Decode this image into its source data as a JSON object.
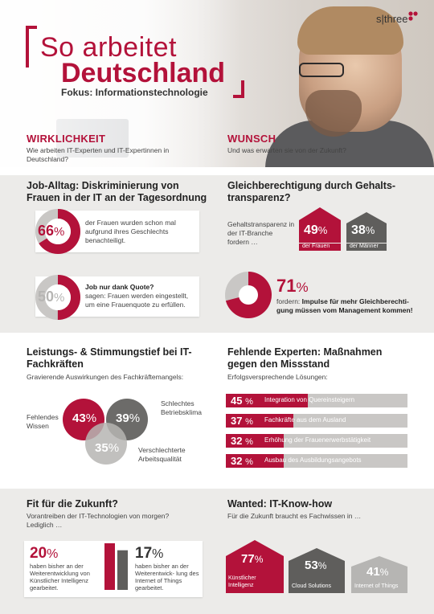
{
  "header": {
    "title_line1": "So arbeitet",
    "title_line2": "Deutschland",
    "subtitle": "Fokus: Informationstechnologie",
    "logo": "s|three"
  },
  "reality": {
    "label": "WIRKLICHKEIT",
    "question": "Wie arbeiten IT-Experten und IT-Expertinnen in Deutschland?"
  },
  "wish": {
    "label": "WUNSCH",
    "question": "Und was erwarten sie von der Zukunft?"
  },
  "job": {
    "heading": "Job-Alltag: Diskriminierung von Frauen in der IT an der Tagesordnung",
    "stat1": {
      "value": "66",
      "unit": "%",
      "text": "der Frauen wurden schon mal aufgrund ihres Geschlechts benachteiligt."
    },
    "stat2": {
      "value": "50",
      "unit": "%",
      "title": "Job nur dank Quote?",
      "text": "sagen: Frauen werden eingestellt, um eine Frauenquote zu erfüllen."
    }
  },
  "equality": {
    "heading": "Gleichberechtigung durch Gehalts- transparenz?",
    "intro": "Gehaltstransparenz in der IT-Branche fordern …",
    "women": {
      "value": "49",
      "unit": "%",
      "label": "der Frauen"
    },
    "men": {
      "value": "38",
      "unit": "%",
      "label": "der Männer"
    },
    "stat3": {
      "value": "71",
      "unit": "%",
      "prefix": "fordern:",
      "text": "Impulse für mehr Gleichberechti- gung müssen vom Management kommen!"
    }
  },
  "performance": {
    "heading": "Leistungs- & Stimmungstief bei IT-Fachkräften",
    "intro": "Gravierende Auswirkungen des Fachkräftemangels:",
    "items": [
      {
        "value": "43",
        "unit": "%",
        "label": "Fehlendes Wissen"
      },
      {
        "value": "39",
        "unit": "%",
        "label": "Schlechtes Betriebsklima"
      },
      {
        "value": "35",
        "unit": "%",
        "label": "Verschlechterte Arbeitsqualität"
      }
    ]
  },
  "experts": {
    "heading": "Fehlende Experten: Maßnahmen gegen den Missstand",
    "intro": "Erfolgsversprechende Lösungen:"
  },
  "future": {
    "heading": "Fit für die Zukunft?",
    "intro": "Vorantreiben der IT-Technologien von morgen? Lediglich …",
    "ai": {
      "value": "20",
      "unit": "%",
      "text": "haben bisher an der Weiterentwicklung von Künstlicher Intelligenz gearbeitet."
    },
    "iot": {
      "value": "17",
      "unit": "%",
      "text": "haben bisher an der Weiterentwick- lung des Internet of Things gearbeitet."
    }
  },
  "wanted": {
    "heading": "Wanted: IT-Know-how",
    "intro": "Für die Zukunft braucht es Fachwissen in …",
    "items": [
      {
        "value": "77",
        "unit": "%",
        "label": "Künstlicher Intelligenz"
      },
      {
        "value": "53",
        "unit": "%",
        "label": "Cloud Solutions"
      },
      {
        "value": "41",
        "unit": "%",
        "label": "Internet of Things"
      }
    ]
  },
  "colors": {
    "accent": "#b3123a",
    "dark_gray": "#5f5e5c",
    "mid_gray": "#8f8e8c",
    "light_gray": "#b6b5b3",
    "band": "#ecebe9"
  },
  "chart_data": [
    {
      "type": "pie",
      "values": [
        66
      ],
      "unit": "%",
      "description_text": "der Frauen wurden schon mal aufgrund ihres Geschlechts benachteiligt."
    },
    {
      "type": "pie",
      "values": [
        50
      ],
      "unit": "%"
    },
    {
      "type": "bar",
      "categories": [
        "der Frauen",
        "der Männer"
      ],
      "values": [
        49,
        38
      ],
      "unit": "%"
    },
    {
      "type": "pie",
      "values": [
        71
      ],
      "unit": "%"
    },
    {
      "type": "bar",
      "categories": [
        "Integration von Quereinsteigern",
        "Fachkräfte aus dem Ausland",
        "Erhöhung der Frauenerwerbstätigkeit",
        "Ausbau des Ausbildungsangebots"
      ],
      "values": [
        45,
        37,
        32,
        32
      ],
      "unit": "%",
      "ylim": [
        0,
        100
      ]
    },
    {
      "type": "bar",
      "categories": [
        "Künstliche Intelligenz",
        "Internet of Things"
      ],
      "values": [
        20,
        17
      ],
      "unit": "%"
    },
    {
      "type": "bar",
      "categories": [
        "Künstlicher Intelligenz",
        "Cloud Solutions",
        "Internet of Things"
      ],
      "values": [
        77,
        53,
        41
      ],
      "unit": "%"
    }
  ]
}
